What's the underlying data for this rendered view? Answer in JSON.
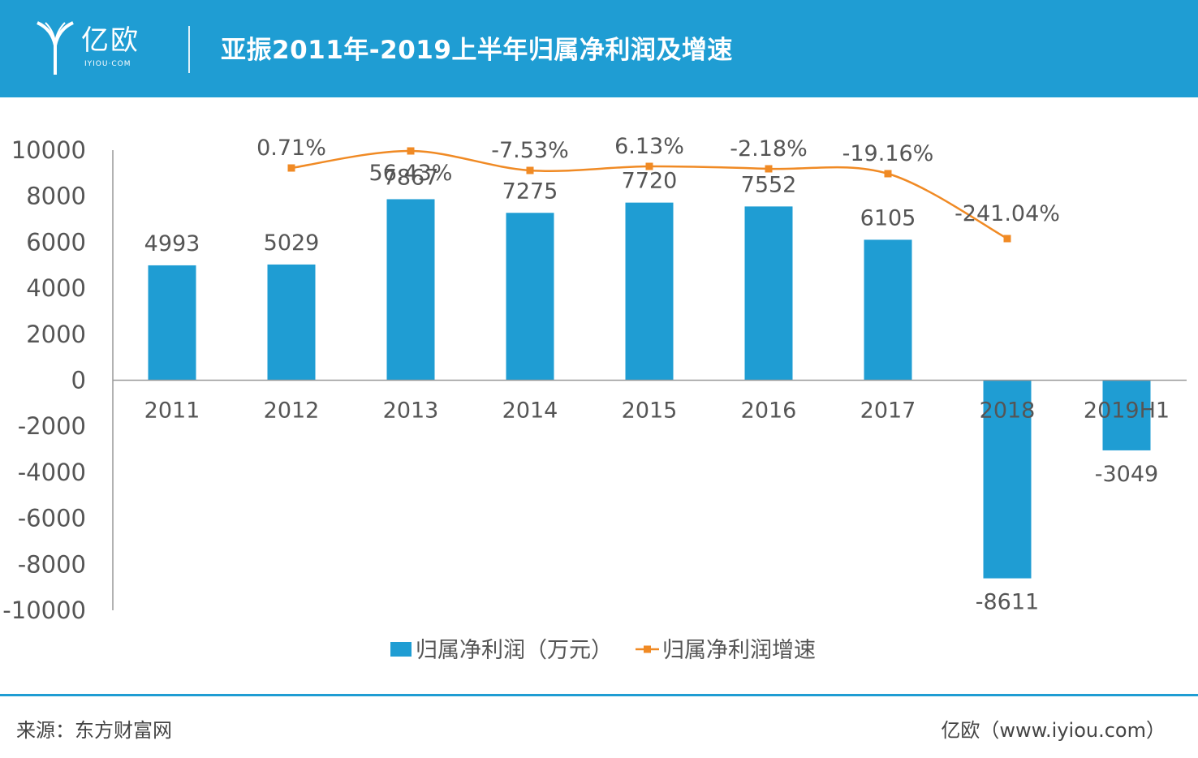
{
  "header": {
    "logo_text": "亿欧",
    "logo_sub": "IYIOU·COM",
    "title": "亚振2011年-2019上半年归属净利润及增速"
  },
  "footer": {
    "source": "来源：东方财富网",
    "site": "亿欧（www.iyiou.com）"
  },
  "colors": {
    "brand": "#1f9dd3",
    "bar": "#1f9dd3",
    "line": "#f08a24",
    "text": "#555555"
  },
  "chart_data": {
    "type": "bar",
    "categories": [
      "2011",
      "2012",
      "2013",
      "2014",
      "2015",
      "2016",
      "2017",
      "2018",
      "2019H1"
    ],
    "series": [
      {
        "name": "归属净利润（万元）",
        "type": "bar",
        "values": [
          4993,
          5029,
          7867,
          7275,
          7720,
          7552,
          6105,
          -8611,
          -3049
        ],
        "labels": [
          "4993",
          "5029",
          "7867",
          "7275",
          "7720",
          "7552",
          "6105",
          "-8611",
          "-3049"
        ]
      },
      {
        "name": "归属净利润增速",
        "type": "line",
        "values": [
          null,
          0.71,
          56.43,
          -7.53,
          6.13,
          -2.18,
          -19.16,
          -241.04,
          null
        ],
        "labels": [
          "",
          "0.71%",
          "56.43%",
          "-7.53%",
          "6.13%",
          "-2.18%",
          "-19.16%",
          "-241.04%",
          ""
        ]
      }
    ],
    "yticks": [
      "10000",
      "8000",
      "6000",
      "4000",
      "2000",
      "0",
      "-2000",
      "-4000",
      "-6000",
      "-8000",
      "-10000"
    ],
    "ylim": [
      -10000,
      10000
    ],
    "legend": "bottom",
    "grid": false
  }
}
